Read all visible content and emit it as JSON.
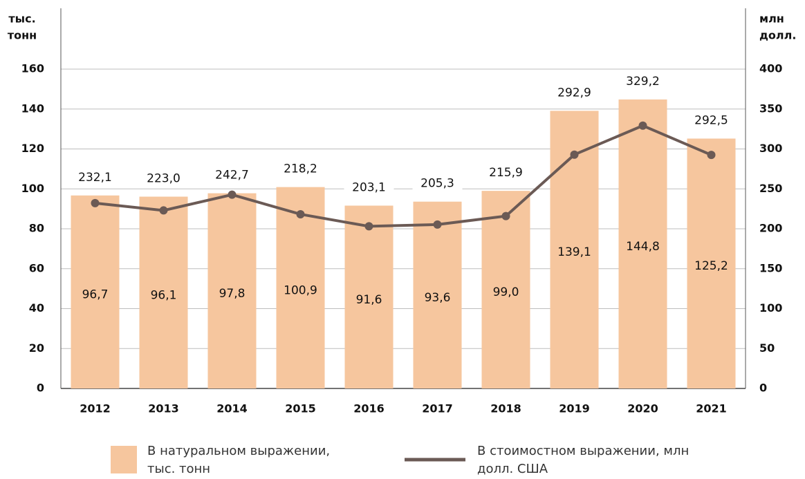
{
  "chart_data": {
    "type": "bar",
    "y_label": [
      "тыс.",
      "тонн"
    ],
    "y2_label": [
      "млн",
      "долл."
    ],
    "categories": [
      "2012",
      "2013",
      "2014",
      "2015",
      "2016",
      "2017",
      "2018",
      "2019",
      "2020",
      "2021"
    ],
    "ylim": [
      0,
      160
    ],
    "yticks": [
      0,
      20,
      40,
      60,
      80,
      100,
      120,
      140,
      160
    ],
    "y2lim": [
      0,
      400
    ],
    "y2ticks": [
      0,
      50,
      100,
      150,
      200,
      250,
      300,
      350,
      400
    ],
    "grid": true,
    "series": [
      {
        "name": "В натуральном выражении, тыс. тонн",
        "type": "bar",
        "color": "#f6c69e",
        "values": [
          96.7,
          96.1,
          97.8,
          100.9,
          91.6,
          93.6,
          99.0,
          139.1,
          144.8,
          125.2
        ],
        "value_labels": [
          "96,7",
          "96,1",
          "97,8",
          "100,9",
          "91,6",
          "93,6",
          "99,0",
          "139,1",
          "144,8",
          "125,2"
        ]
      },
      {
        "name": "В стоимостном выражении, млн долл. США",
        "type": "line",
        "axis": "y2",
        "color": "#6b5a55",
        "values": [
          232.1,
          223.0,
          242.7,
          218.2,
          203.1,
          205.3,
          215.9,
          292.9,
          329.2,
          292.5
        ],
        "value_labels": [
          "232,1",
          "223,0",
          "242,7",
          "218,2",
          "203,1",
          "205,3",
          "215,9",
          "292,9",
          "329,2",
          "292,5"
        ]
      }
    ]
  }
}
